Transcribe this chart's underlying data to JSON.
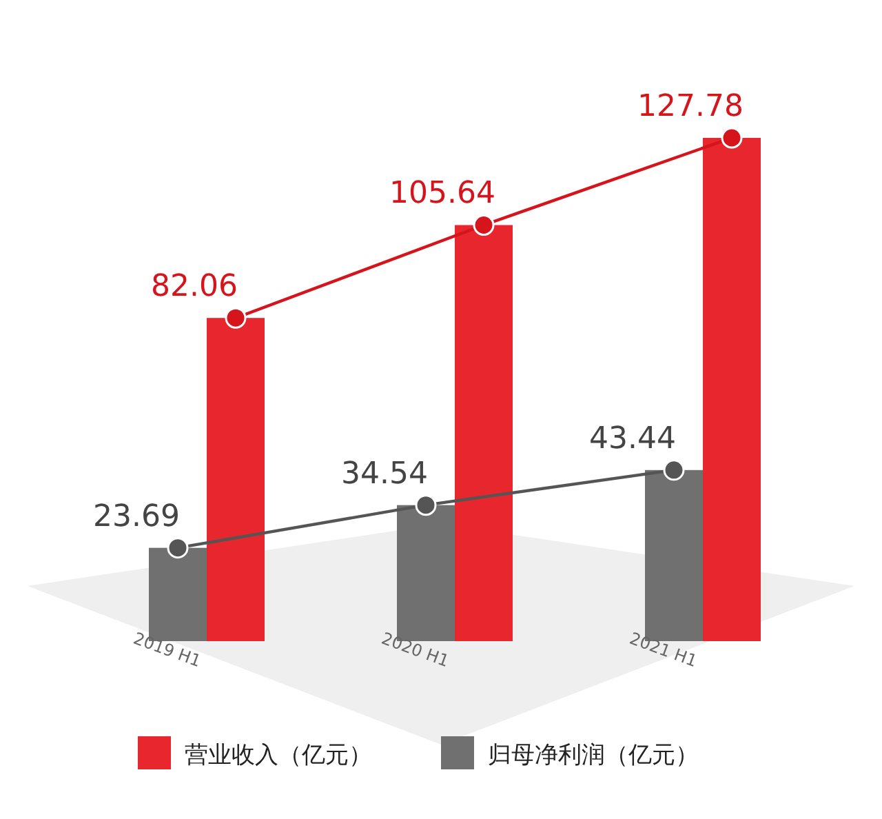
{
  "chart_data": {
    "type": "bar",
    "categories": [
      "2019 H1",
      "2020 H1",
      "2021 H1"
    ],
    "legend": "bottom",
    "marker": "circle",
    "series": [
      {
        "name": "归母净利润（亿元）",
        "color": "#707070",
        "values": [
          23.69,
          34.54,
          43.44
        ]
      },
      {
        "name": "营业收入（亿元）",
        "color": "#e8262e",
        "values": [
          82.06,
          105.64,
          127.78
        ]
      },
      {
        "type": "line",
        "color": "#555555",
        "values": [
          23.69,
          34.54,
          43.44
        ],
        "value_labels": [
          "23.69",
          "34.54",
          "43.44"
        ]
      },
      {
        "type": "line",
        "color": "#d5141c",
        "values": [
          82.06,
          105.64,
          127.78
        ],
        "value_labels": [
          "82.06",
          "105.64",
          "127.78"
        ]
      }
    ]
  }
}
